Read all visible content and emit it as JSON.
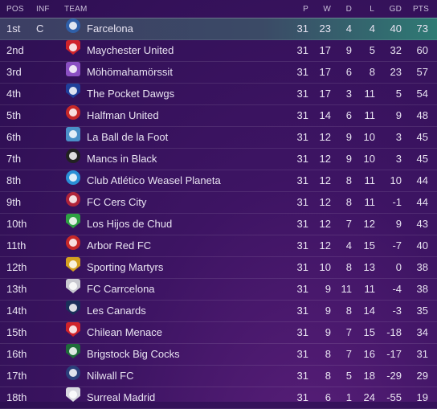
{
  "headers": {
    "pos": "POS",
    "inf": "INF",
    "team": "TEAM",
    "p": "P",
    "w": "W",
    "d": "D",
    "l": "L",
    "gd": "GD",
    "pts": "PTS"
  },
  "rows": [
    {
      "pos": "1st",
      "inf": "C",
      "team": "Farcelona",
      "p": "31",
      "w": "23",
      "d": "4",
      "l": "4",
      "gd": "40",
      "pts": "73",
      "badge_color": "#2f5fa8",
      "badge_shape": "circle"
    },
    {
      "pos": "2nd",
      "inf": "",
      "team": "Maychester United",
      "p": "31",
      "w": "17",
      "d": "9",
      "l": "5",
      "gd": "32",
      "pts": "60",
      "badge_color": "#d0232a",
      "badge_shape": "shield"
    },
    {
      "pos": "3rd",
      "inf": "",
      "team": "Möhömahamörssit",
      "p": "31",
      "w": "17",
      "d": "6",
      "l": "8",
      "gd": "23",
      "pts": "57",
      "badge_color": "#8a4fc2",
      "badge_shape": "square"
    },
    {
      "pos": "4th",
      "inf": "",
      "team": "The Pocket Dawgs",
      "p": "31",
      "w": "17",
      "d": "3",
      "l": "11",
      "gd": "5",
      "pts": "54",
      "badge_color": "#1f3f9a",
      "badge_shape": "shield"
    },
    {
      "pos": "5th",
      "inf": "",
      "team": "Halfman United",
      "p": "31",
      "w": "14",
      "d": "6",
      "l": "11",
      "gd": "9",
      "pts": "48",
      "badge_color": "#c62828",
      "badge_shape": "circle"
    },
    {
      "pos": "6th",
      "inf": "",
      "team": "La Ball de la Foot",
      "p": "31",
      "w": "12",
      "d": "9",
      "l": "10",
      "gd": "3",
      "pts": "45",
      "badge_color": "#4a90c8",
      "badge_shape": "square"
    },
    {
      "pos": "7th",
      "inf": "",
      "team": "Mancs in Black",
      "p": "31",
      "w": "12",
      "d": "9",
      "l": "10",
      "gd": "3",
      "pts": "45",
      "badge_color": "#222222",
      "badge_shape": "circle"
    },
    {
      "pos": "8th",
      "inf": "",
      "team": "Club Atlético Weasel Planeta",
      "p": "31",
      "w": "12",
      "d": "8",
      "l": "11",
      "gd": "10",
      "pts": "44",
      "badge_color": "#2a8fd6",
      "badge_shape": "circle"
    },
    {
      "pos": "9th",
      "inf": "",
      "team": "FC Cers City",
      "p": "31",
      "w": "12",
      "d": "8",
      "l": "11",
      "gd": "-1",
      "pts": "44",
      "badge_color": "#b0243a",
      "badge_shape": "circle"
    },
    {
      "pos": "10th",
      "inf": "",
      "team": "Los Hijos de Chud",
      "p": "31",
      "w": "12",
      "d": "7",
      "l": "12",
      "gd": "9",
      "pts": "43",
      "badge_color": "#2ea043",
      "badge_shape": "shield"
    },
    {
      "pos": "11th",
      "inf": "",
      "team": "Arbor Red FC",
      "p": "31",
      "w": "12",
      "d": "4",
      "l": "15",
      "gd": "-7",
      "pts": "40",
      "badge_color": "#c62828",
      "badge_shape": "circle"
    },
    {
      "pos": "12th",
      "inf": "",
      "team": "Sporting Martyrs",
      "p": "31",
      "w": "10",
      "d": "8",
      "l": "13",
      "gd": "0",
      "pts": "38",
      "badge_color": "#d4a020",
      "badge_shape": "shield"
    },
    {
      "pos": "13th",
      "inf": "",
      "team": "FC Carrcelona",
      "p": "31",
      "w": "9",
      "d": "11",
      "l": "11",
      "gd": "-4",
      "pts": "38",
      "badge_color": "#c8c8d0",
      "badge_shape": "shield"
    },
    {
      "pos": "14th",
      "inf": "",
      "team": "Les Canards",
      "p": "31",
      "w": "9",
      "d": "8",
      "l": "14",
      "gd": "-3",
      "pts": "35",
      "badge_color": "#1a2f5a",
      "badge_shape": "shield"
    },
    {
      "pos": "15th",
      "inf": "",
      "team": "Chilean Menace",
      "p": "31",
      "w": "9",
      "d": "7",
      "l": "15",
      "gd": "-18",
      "pts": "34",
      "badge_color": "#d0232a",
      "badge_shape": "shield"
    },
    {
      "pos": "16th",
      "inf": "",
      "team": "Brigstock Big Cocks",
      "p": "31",
      "w": "8",
      "d": "7",
      "l": "16",
      "gd": "-17",
      "pts": "31",
      "badge_color": "#1f6b3a",
      "badge_shape": "shield"
    },
    {
      "pos": "17th",
      "inf": "",
      "team": "Nilwall FC",
      "p": "31",
      "w": "8",
      "d": "5",
      "l": "18",
      "gd": "-29",
      "pts": "29",
      "badge_color": "#2a3f7a",
      "badge_shape": "circle"
    },
    {
      "pos": "18th",
      "inf": "",
      "team": "Surreal Madrid",
      "p": "31",
      "w": "6",
      "d": "1",
      "l": "24",
      "gd": "-55",
      "pts": "19",
      "badge_color": "#d8d8e0",
      "badge_shape": "shield"
    }
  ]
}
